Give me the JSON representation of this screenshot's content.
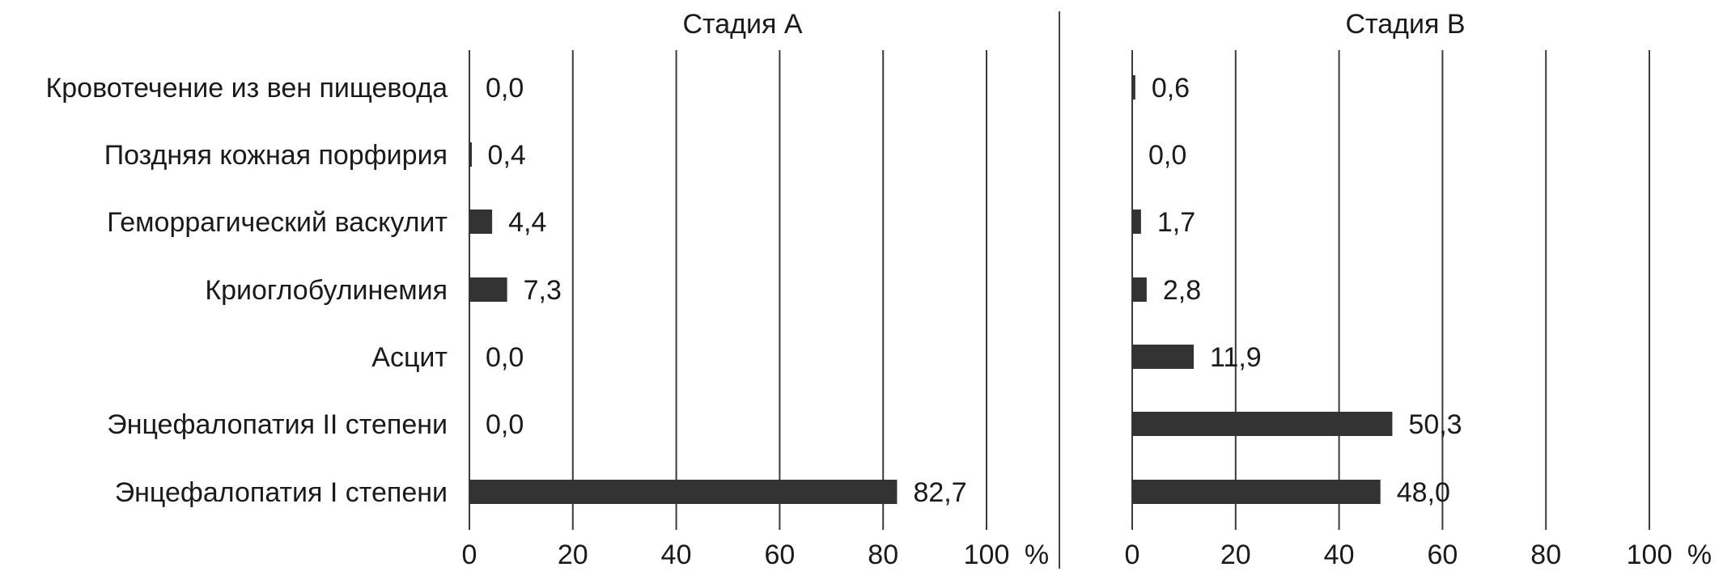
{
  "chart_data": {
    "type": "bar",
    "orientation": "horizontal",
    "categories": [
      "Кровотечение из вен пищевода",
      "Поздняя кожная порфирия",
      "Геморрагический васкулит",
      "Криоглобулинемия",
      "Асцит",
      "Энцефалопатия II степени",
      "Энцефалопатия I степени"
    ],
    "panels": [
      {
        "title": "Стадия А",
        "values": [
          0.0,
          0.4,
          4.4,
          7.3,
          0.0,
          0.0,
          82.7
        ],
        "value_labels": [
          "0,0",
          "0,4",
          "4,4",
          "7,3",
          "0,0",
          "0,0",
          "82,7"
        ]
      },
      {
        "title": "Стадия В",
        "values": [
          0.6,
          0.0,
          1.7,
          2.8,
          11.9,
          50.3,
          48.0
        ],
        "value_labels": [
          "0,6",
          "0,0",
          "1,7",
          "2,8",
          "11,9",
          "50,3",
          "48,0"
        ]
      }
    ],
    "x_ticks": [
      "0",
      "20",
      "40",
      "60",
      "80",
      "100"
    ],
    "x_unit": "%",
    "xlim": [
      0,
      100
    ],
    "grid": true,
    "bar_color": "#333333"
  }
}
